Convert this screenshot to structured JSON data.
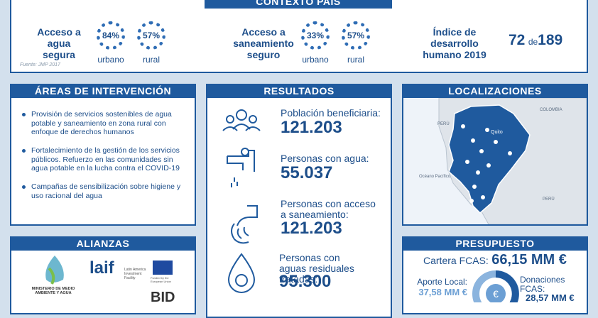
{
  "header": {
    "title": "CONTEXTO PAÍS"
  },
  "context": {
    "water": {
      "label": "Acceso a agua segura",
      "urban": {
        "value": "84%",
        "label": "urbano"
      },
      "rural": {
        "value": "57%",
        "label": "rural"
      }
    },
    "source": "Fuente: JMP 2017",
    "sanitation": {
      "label": "Acceso a saneamiento seguro",
      "urban": {
        "value": "33%",
        "label": "urbano"
      },
      "rural": {
        "value": "57%",
        "label": "rural"
      }
    },
    "hdi": {
      "label": "Índice de desarrollo humano 2019",
      "rank": "72",
      "of": "de",
      "total": "189"
    }
  },
  "areas": {
    "title": "ÁREAS DE INTERVENCIÓN",
    "items": [
      "Provisión de servicios sostenibles de agua potable y saneamiento en zona rural con enfoque de derechos humanos",
      "Fortalecimiento de la gestión de los servicios públicos. Refuerzo en las comunidades sin agua potable en la lucha contra el COVID-19",
      "Campañas de sensibilización sobre higiene y uso racional del agua"
    ]
  },
  "results": {
    "title": "RESULTADOS",
    "items": [
      {
        "label": "Población beneficiaria:",
        "value": "121.203"
      },
      {
        "label": "Personas con agua:",
        "value": "55.037"
      },
      {
        "label": "Personas con acceso a saneamiento:",
        "value": "121.203"
      },
      {
        "label": "Personas con aguas residuales tratadas:",
        "value": "95.300"
      }
    ]
  },
  "locations": {
    "title": "LOCALIZACIONES",
    "map_labels": {
      "colombia": "COLOMBIA",
      "peru_north": "PERÚ",
      "capital": "Quito",
      "ocean": "Océano Pacífico",
      "peru_south": "PERÚ"
    }
  },
  "alliances": {
    "title": "ALIANZAS",
    "logos": {
      "ministry": "MINISTERIO DE MEDIO AMBIENTE Y AGUA",
      "laif": "laif",
      "laif_name": "Latin America Investment Facility",
      "eu": "Funded by the European Union",
      "bid": "BID"
    }
  },
  "budget": {
    "title": "PRESUPUESTO",
    "portfolio_label": "Cartera FCAS:",
    "portfolio_value": "66,15 MM €",
    "local_label": "Aporte Local:",
    "local_value": "37,58 MM €",
    "donation_label": "Donaciones FCAS:",
    "donation_value": "28,57 MM €"
  }
}
